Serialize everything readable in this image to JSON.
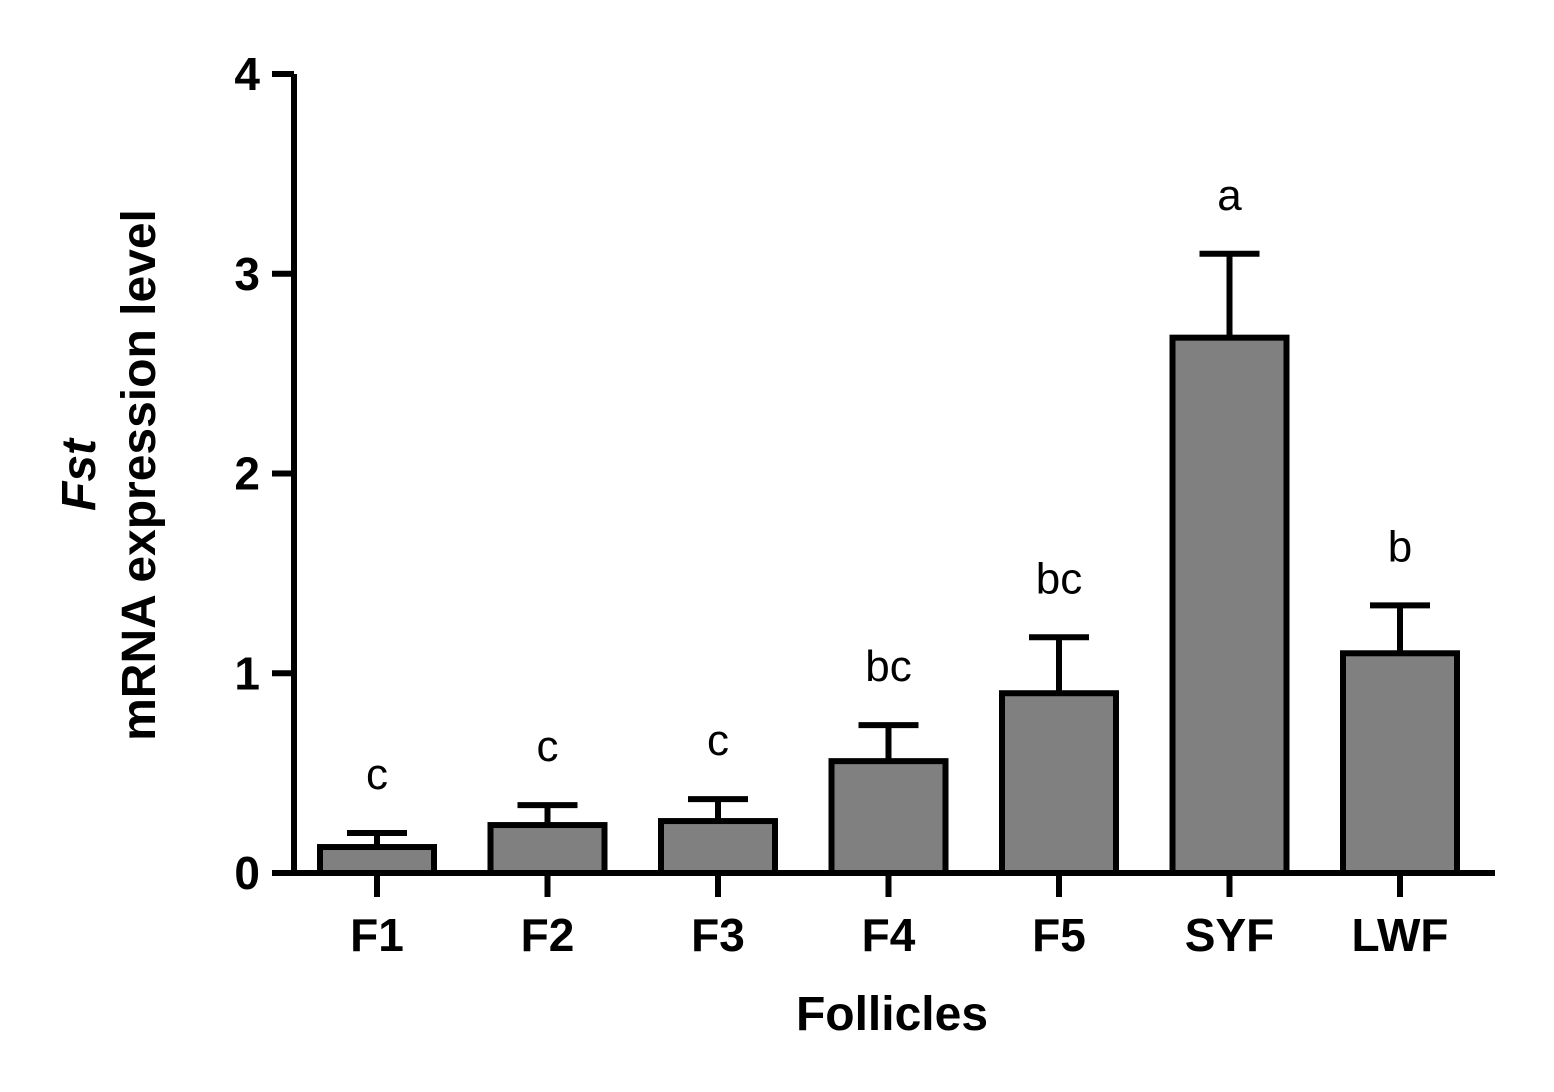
{
  "chart_data": {
    "type": "bar",
    "categories": [
      "F1",
      "F2",
      "F3",
      "F4",
      "F5",
      "SYF",
      "LWF"
    ],
    "values": [
      0.13,
      0.24,
      0.26,
      0.56,
      0.9,
      2.68,
      1.1
    ],
    "errors": [
      0.07,
      0.1,
      0.11,
      0.18,
      0.28,
      0.42,
      0.24
    ],
    "significance": [
      "c",
      "c",
      "c",
      "bc",
      "bc",
      "a",
      "b"
    ],
    "xlabel": "Follicles",
    "ylabel_italic": "Fst",
    "ylabel": "mRNA expression level",
    "ylim": [
      0,
      4
    ],
    "yticks": [
      "0",
      "1",
      "2",
      "3",
      "4"
    ],
    "grid": false,
    "colors": {
      "bar_fill": "#808080",
      "bar_edge": "#000000"
    }
  }
}
